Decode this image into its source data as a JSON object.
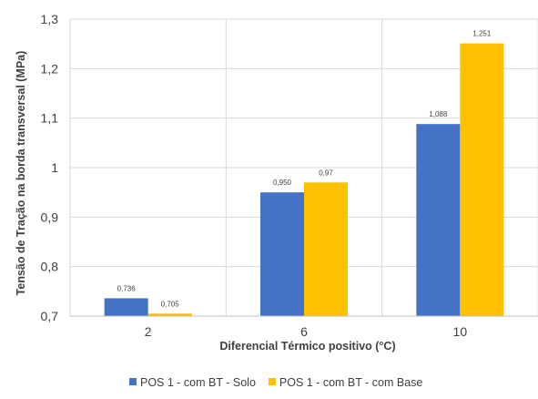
{
  "chart_data": {
    "type": "bar",
    "categories": [
      "2",
      "6",
      "10"
    ],
    "series": [
      {
        "name": "POS 1 - com BT - Solo",
        "values": [
          0.736,
          0.95,
          1.088
        ],
        "labels": [
          "0,736",
          "0,950",
          "1,088"
        ],
        "color": "#4472C4"
      },
      {
        "name": "POS 1 - com BT - com Base",
        "values": [
          0.705,
          0.97,
          1.251
        ],
        "labels": [
          "0,705",
          "0,97",
          "1,251"
        ],
        "color": "#FFC000"
      }
    ],
    "xlabel": "Diferencial Térmico positivo (°C)",
    "ylabel": "Tensão de Tração na borda transversal (MPa)",
    "ylim": [
      0.7,
      1.3
    ],
    "yticks": [
      0.7,
      0.8,
      0.9,
      1.0,
      1.1,
      1.2,
      1.3
    ],
    "ytick_labels": [
      "0,7",
      "0,8",
      "0,9",
      "1",
      "1,1",
      "1,2",
      "1,3"
    ],
    "grid": true,
    "legend_position": "bottom"
  }
}
